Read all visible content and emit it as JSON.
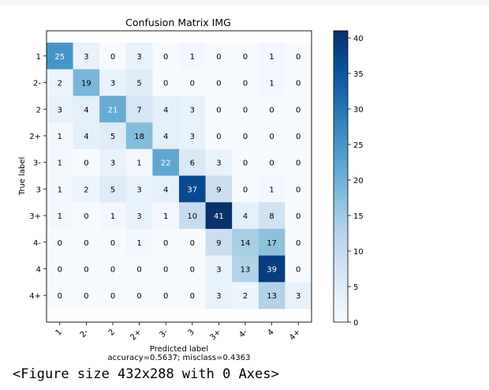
{
  "chart_data": {
    "type": "heatmap",
    "title": "Confusion Matrix IMG",
    "xlabel": "Predicted label",
    "xlabel_note": "accuracy=0.5637; misclass=0.4363",
    "ylabel": "True label",
    "x_categories": [
      "1",
      "2-",
      "2",
      "2+",
      "3-",
      "3",
      "3+",
      "4-",
      "4",
      "4+"
    ],
    "y_categories": [
      "1",
      "2-",
      "2",
      "2+",
      "3-",
      "3",
      "3+",
      "4-",
      "4",
      "4+"
    ],
    "matrix": [
      [
        25,
        3,
        0,
        3,
        0,
        1,
        0,
        0,
        1,
        0
      ],
      [
        2,
        19,
        3,
        5,
        0,
        0,
        0,
        0,
        1,
        0
      ],
      [
        3,
        4,
        21,
        7,
        4,
        3,
        0,
        0,
        0,
        0
      ],
      [
        1,
        4,
        5,
        18,
        4,
        3,
        0,
        0,
        0,
        0
      ],
      [
        1,
        0,
        3,
        1,
        22,
        6,
        3,
        0,
        0,
        0
      ],
      [
        1,
        2,
        5,
        3,
        4,
        37,
        9,
        0,
        1,
        0
      ],
      [
        1,
        0,
        1,
        3,
        1,
        10,
        41,
        4,
        8,
        0
      ],
      [
        0,
        0,
        0,
        1,
        0,
        0,
        9,
        14,
        17,
        0
      ],
      [
        0,
        0,
        0,
        0,
        0,
        0,
        3,
        13,
        39,
        0
      ],
      [
        0,
        0,
        0,
        0,
        0,
        0,
        3,
        2,
        13,
        3
      ]
    ],
    "colormap": "Blues",
    "vmin": 0,
    "vmax": 41,
    "colorbar_ticks": [
      0,
      5,
      10,
      15,
      20,
      25,
      30,
      35,
      40
    ]
  },
  "footer_text": "<Figure size 432x288 with 0 Axes>"
}
